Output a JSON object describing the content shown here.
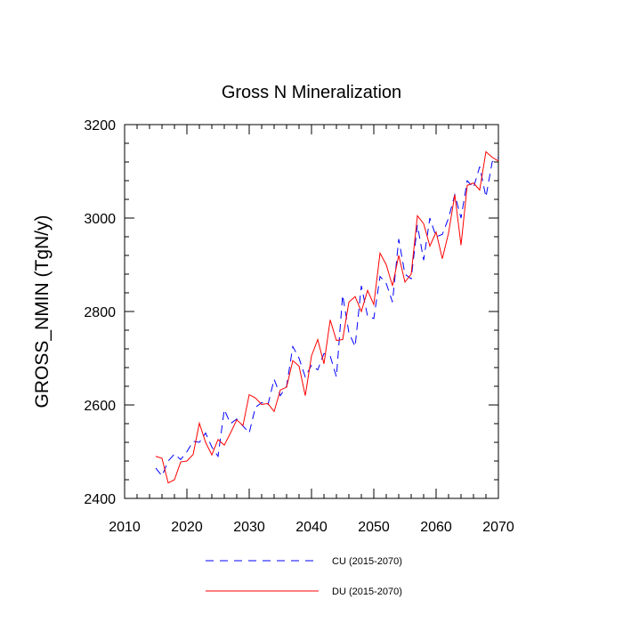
{
  "chart_data": {
    "type": "line",
    "title": "Gross N Mineralization",
    "ylabel": "GROSS_NMIN  (TgN/y)",
    "xlabel": "",
    "xlim": [
      2010,
      2070
    ],
    "ylim": [
      2400,
      3200
    ],
    "x_ticks": [
      2010,
      2020,
      2030,
      2040,
      2050,
      2060,
      2070
    ],
    "y_ticks": [
      2400,
      2600,
      2800,
      3000,
      3200
    ],
    "x_minor_step": 2,
    "y_minor_step": 40,
    "legend_position": "bottom",
    "x": [
      2015,
      2016,
      2017,
      2018,
      2019,
      2020,
      2021,
      2022,
      2023,
      2024,
      2025,
      2026,
      2027,
      2028,
      2029,
      2030,
      2031,
      2032,
      2033,
      2034,
      2035,
      2036,
      2037,
      2038,
      2039,
      2040,
      2041,
      2042,
      2043,
      2044,
      2045,
      2046,
      2047,
      2048,
      2049,
      2050,
      2051,
      2052,
      2053,
      2054,
      2055,
      2056,
      2057,
      2058,
      2059,
      2060,
      2061,
      2062,
      2063,
      2064,
      2065,
      2066,
      2067,
      2068,
      2069,
      2070
    ],
    "series": [
      {
        "name": "CU (2015-2070)",
        "color": "#0000ff",
        "style": "dashed",
        "values": [
          2465,
          2448,
          2480,
          2495,
          2483,
          2500,
          2522,
          2520,
          2540,
          2510,
          2490,
          2590,
          2560,
          2570,
          2555,
          2540,
          2595,
          2605,
          2600,
          2655,
          2620,
          2640,
          2725,
          2700,
          2660,
          2685,
          2675,
          2710,
          2705,
          2660,
          2835,
          2755,
          2725,
          2855,
          2790,
          2785,
          2875,
          2860,
          2820,
          2955,
          2880,
          2870,
          2985,
          2910,
          3000,
          2960,
          2965,
          3000,
          3050,
          3000,
          3080,
          3065,
          3110,
          3045,
          3120,
          3130
        ]
      },
      {
        "name": "DU (2015-2070)",
        "color": "#ff0000",
        "style": "solid",
        "values": [
          2490,
          2486,
          2433,
          2440,
          2478,
          2480,
          2494,
          2561,
          2520,
          2493,
          2526,
          2514,
          2540,
          2568,
          2556,
          2622,
          2615,
          2601,
          2603,
          2586,
          2632,
          2638,
          2695,
          2683,
          2620,
          2705,
          2740,
          2688,
          2782,
          2738,
          2740,
          2820,
          2832,
          2800,
          2845,
          2815,
          2925,
          2900,
          2855,
          2920,
          2863,
          2880,
          3005,
          2988,
          2940,
          2970,
          2913,
          2968,
          3050,
          2942,
          3070,
          3075,
          3060,
          3142,
          3130,
          3122
        ]
      }
    ]
  }
}
